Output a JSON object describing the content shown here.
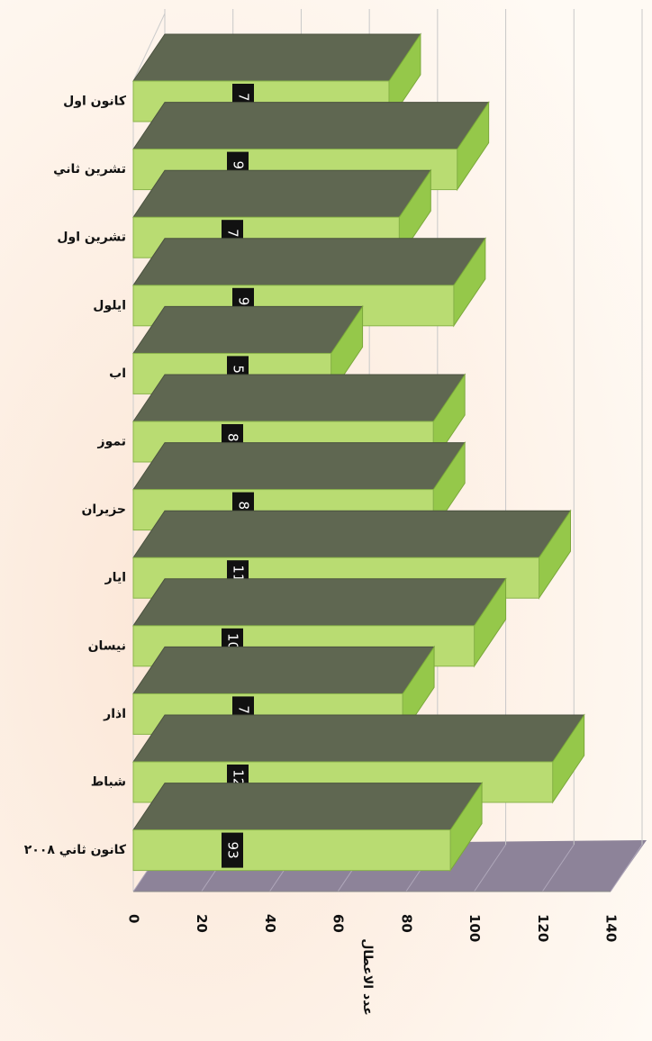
{
  "chart_data": {
    "type": "bar",
    "orientation": "horizontal",
    "x_label": "عدد الاعطال",
    "categories": [
      "كانون اول",
      "تشرين ثاني",
      "تشرين اول",
      "ايلول",
      "اب",
      "تموز",
      "حزيران",
      "ايار",
      "نيسان",
      "اذار",
      "شباط",
      "كانون ثاني ٢٠٠٨"
    ],
    "values": [
      75,
      95,
      78,
      94,
      58,
      88,
      88,
      119,
      100,
      79,
      123,
      93
    ],
    "color": "#b9dc72",
    "xlim": [
      0,
      140
    ],
    "xticks": [
      0,
      20,
      40,
      60,
      80,
      100,
      120,
      140
    ],
    "grid": true
  }
}
